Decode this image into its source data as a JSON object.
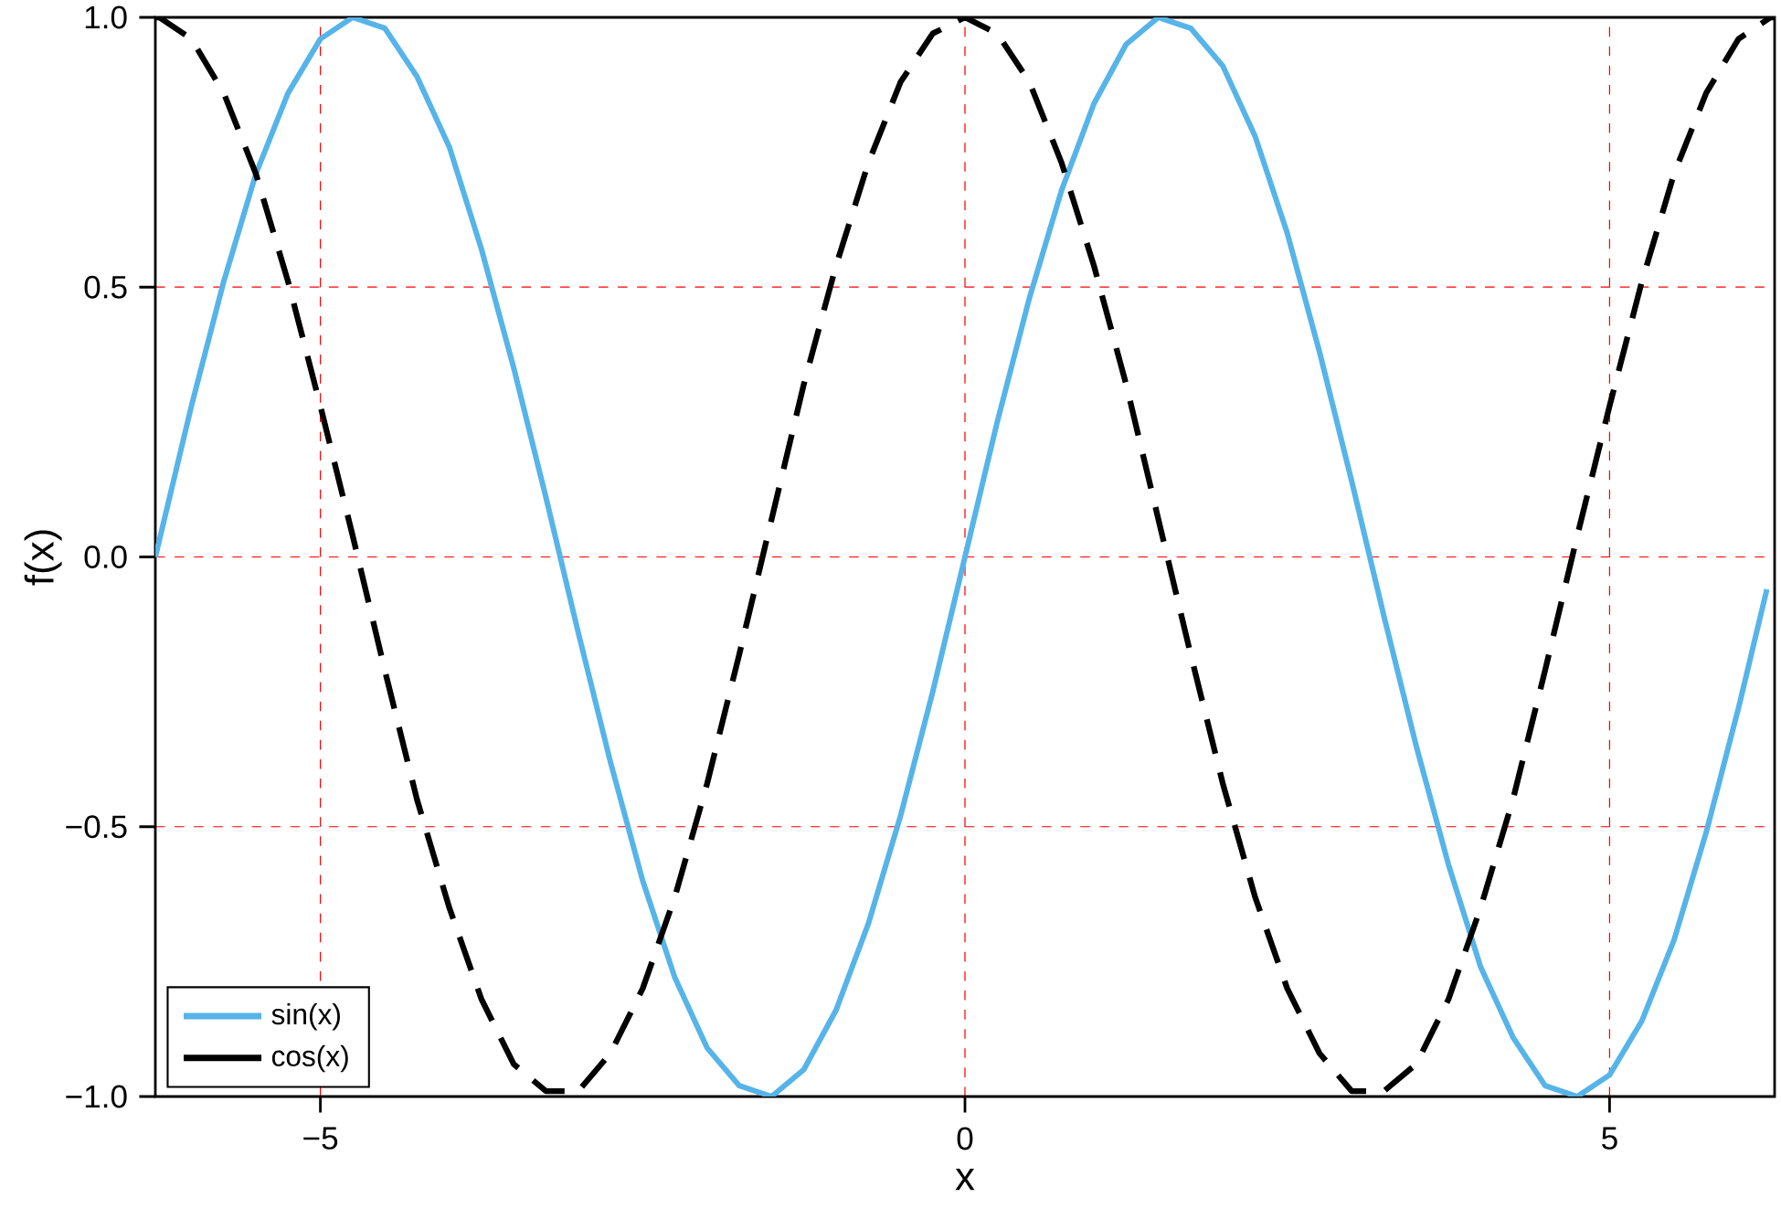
{
  "chart_data": {
    "type": "line",
    "xlabel": "x",
    "ylabel": "f(x)",
    "xlim": [
      -6.28,
      6.28
    ],
    "ylim": [
      -1.0,
      1.0
    ],
    "xticks": [
      {
        "value": -5,
        "label": "−5"
      },
      0,
      5
    ],
    "yticks": [
      {
        "value": -1.0,
        "label": "−1.0"
      },
      {
        "value": -0.5,
        "label": "−0.5"
      },
      {
        "value": 0.0,
        "label": "0.0"
      },
      {
        "value": 0.5,
        "label": "0.5"
      },
      {
        "value": 1.0,
        "label": "1.0"
      }
    ],
    "grid": true,
    "legend": "bottom left",
    "series": [
      {
        "name": "sin(x)",
        "color": "#56b4e9",
        "line_style": "solid",
        "x": [
          -6.28,
          -6.25,
          -6.0,
          -5.75,
          -5.5,
          -5.25,
          -5.0,
          -4.75,
          -4.5,
          -4.25,
          -4.0,
          -3.75,
          -3.5,
          -3.25,
          -3.0,
          -2.75,
          -2.5,
          -2.25,
          -2.0,
          -1.75,
          -1.5,
          -1.25,
          -1.0,
          -0.75,
          -0.5,
          -0.25,
          0.0,
          0.25,
          0.5,
          0.75,
          1.0,
          1.25,
          1.5,
          1.75,
          2.0,
          2.25,
          2.5,
          2.75,
          3.0,
          3.25,
          3.5,
          3.75,
          4.0,
          4.25,
          4.5,
          4.75,
          5.0,
          5.25,
          5.5,
          5.75,
          6.0,
          6.22
        ],
        "values": [
          0.0,
          0.03,
          0.28,
          0.51,
          0.71,
          0.86,
          0.96,
          1.0,
          0.98,
          0.89,
          0.76,
          0.57,
          0.35,
          0.11,
          -0.14,
          -0.38,
          -0.6,
          -0.78,
          -0.91,
          -0.98,
          -1.0,
          -0.95,
          -0.84,
          -0.68,
          -0.48,
          -0.25,
          0.0,
          0.25,
          0.48,
          0.68,
          0.84,
          0.95,
          1.0,
          0.98,
          0.91,
          0.78,
          0.6,
          0.38,
          0.14,
          -0.11,
          -0.35,
          -0.57,
          -0.76,
          -0.89,
          -0.98,
          -1.0,
          -0.96,
          -0.86,
          -0.71,
          -0.51,
          -0.28,
          -0.06
        ]
      },
      {
        "name": "cos(x)",
        "color": "#000000",
        "line_style": "dashed",
        "x": [
          -6.28,
          -6.25,
          -6.0,
          -5.75,
          -5.5,
          -5.25,
          -5.0,
          -4.75,
          -4.5,
          -4.25,
          -4.0,
          -3.75,
          -3.5,
          -3.25,
          -3.0,
          -2.75,
          -2.5,
          -2.25,
          -2.0,
          -1.75,
          -1.5,
          -1.25,
          -1.0,
          -0.75,
          -0.5,
          -0.25,
          0.0,
          0.25,
          0.5,
          0.75,
          1.0,
          1.25,
          1.5,
          1.75,
          2.0,
          2.25,
          2.5,
          2.75,
          3.0,
          3.25,
          3.5,
          3.75,
          4.0,
          4.25,
          4.5,
          4.75,
          5.0,
          5.25,
          5.5,
          5.75,
          6.0,
          6.25,
          6.28
        ],
        "values": [
          1.0,
          1.0,
          0.96,
          0.86,
          0.71,
          0.51,
          0.28,
          0.04,
          -0.21,
          -0.45,
          -0.65,
          -0.82,
          -0.94,
          -0.99,
          -0.99,
          -0.92,
          -0.8,
          -0.63,
          -0.42,
          -0.18,
          0.07,
          0.32,
          0.54,
          0.73,
          0.88,
          0.97,
          1.0,
          0.97,
          0.88,
          0.73,
          0.54,
          0.32,
          0.07,
          -0.18,
          -0.42,
          -0.63,
          -0.8,
          -0.92,
          -0.99,
          -0.99,
          -0.94,
          -0.82,
          -0.65,
          -0.45,
          -0.21,
          0.04,
          0.28,
          0.51,
          0.71,
          0.86,
          0.96,
          1.0,
          1.0
        ]
      }
    ]
  }
}
